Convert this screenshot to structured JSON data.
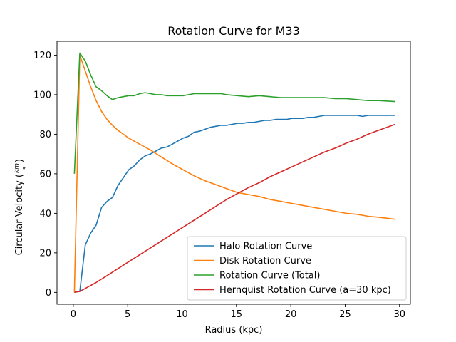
{
  "chart_data": {
    "type": "line",
    "title": "Rotation Curve for M33",
    "xlabel": "Radius (kpc)",
    "ylabel_prefix": "Circular Velocity (",
    "ylabel_num": "km",
    "ylabel_den": "s",
    "ylabel_suffix": ")",
    "xlim": [
      -1.5,
      31
    ],
    "ylim": [
      -6,
      127
    ],
    "xticks": [
      0,
      5,
      10,
      15,
      20,
      25,
      30
    ],
    "yticks": [
      0,
      20,
      40,
      60,
      80,
      100,
      120
    ],
    "grid": false,
    "legend": "lower-right",
    "series": [
      {
        "name": "Halo Rotation Curve",
        "color": "#1f77b4",
        "x": [
          0.1,
          0.6,
          1.1,
          1.6,
          2.1,
          2.6,
          3.1,
          3.6,
          4.1,
          4.6,
          5.1,
          5.6,
          6.1,
          6.6,
          7.1,
          7.6,
          8.1,
          8.6,
          9.1,
          9.6,
          10.1,
          10.6,
          11.1,
          11.6,
          12.1,
          12.6,
          13.1,
          13.6,
          14.1,
          14.6,
          15.1,
          15.6,
          16.1,
          16.6,
          17.1,
          17.6,
          18.1,
          18.6,
          19.1,
          19.6,
          20.1,
          20.6,
          21.1,
          21.6,
          22.1,
          22.6,
          23.1,
          23.6,
          24.1,
          24.6,
          25.1,
          25.6,
          26.1,
          26.6,
          27.1,
          27.6,
          28.1,
          28.6,
          29.1,
          29.6
        ],
        "values": [
          0.5,
          0.5,
          24,
          30,
          34,
          43,
          46,
          48,
          54,
          58,
          62,
          64,
          67,
          69,
          70,
          71.5,
          73,
          73.5,
          75,
          76.5,
          78,
          79,
          81,
          81.5,
          82.5,
          83.5,
          84,
          84.5,
          84.5,
          85,
          85.5,
          85.5,
          86,
          86,
          86.5,
          87,
          87,
          87.5,
          87.5,
          87.5,
          88,
          88,
          88,
          88.5,
          88.5,
          89,
          89.5,
          89.5,
          89.5,
          89.5,
          89.5,
          89.5,
          89.5,
          89,
          89.5,
          89.5,
          89.5,
          89.5,
          89.5,
          89.5
        ]
      },
      {
        "name": "Disk Rotation Curve",
        "color": "#ff7f0e",
        "x": [
          0.1,
          0.6,
          1.1,
          1.6,
          2.1,
          2.6,
          3.1,
          3.6,
          4.1,
          4.6,
          5.1,
          6.1,
          7.1,
          8.1,
          9.1,
          10.1,
          11.1,
          12.1,
          13.1,
          14.1,
          15.1,
          16.1,
          17.1,
          18.1,
          19.1,
          20.1,
          21.1,
          22.1,
          23.1,
          24.1,
          25.1,
          26.1,
          27.1,
          28.1,
          29.6
        ],
        "values": [
          0,
          120,
          112,
          104,
          97,
          91.5,
          87.5,
          84.5,
          82,
          80,
          78,
          75,
          72,
          68.5,
          65,
          62,
          59,
          56.5,
          54.5,
          52.5,
          50.5,
          49.5,
          48.5,
          47,
          46,
          45,
          44,
          43,
          42,
          41,
          40,
          39.5,
          38.5,
          38,
          37
        ]
      },
      {
        "name": "Rotation Curve (Total)",
        "color": "#2ca02c",
        "x": [
          0.1,
          0.6,
          1.1,
          1.6,
          2.1,
          2.6,
          3.1,
          3.6,
          4.1,
          4.6,
          5.1,
          5.6,
          6.1,
          6.6,
          7.1,
          7.6,
          8.1,
          8.6,
          9.1,
          9.6,
          10.1,
          10.6,
          11.1,
          11.6,
          12.1,
          12.6,
          13.1,
          13.6,
          14.1,
          15.1,
          16.1,
          17.1,
          18.1,
          19.1,
          20.1,
          21.1,
          22.1,
          23.1,
          24.1,
          25.1,
          26.1,
          27.1,
          28.1,
          29.6
        ],
        "values": [
          60,
          121,
          117,
          110,
          104,
          102,
          99.5,
          97.5,
          98.5,
          99,
          99.5,
          99.5,
          100.5,
          101,
          100.5,
          100,
          100,
          99.5,
          99.5,
          99.5,
          99.5,
          100,
          100.5,
          100.5,
          100.5,
          100.5,
          100.5,
          100.5,
          100,
          99.5,
          99,
          99.5,
          99,
          98.5,
          98.5,
          98.5,
          98.5,
          98.5,
          98,
          98,
          97.5,
          97,
          97,
          96.5
        ]
      },
      {
        "name": "Hernquist Rotation Curve (a=30 kpc)",
        "color": "#d62728",
        "x": [
          0.1,
          0.6,
          1.1,
          2.1,
          3.1,
          4.1,
          5.1,
          6.1,
          7.1,
          8.1,
          9.1,
          10.1,
          11.1,
          12.1,
          13.1,
          14.1,
          15.1,
          16.1,
          17.1,
          18.1,
          19.1,
          20.1,
          21.1,
          22.1,
          23.1,
          24.1,
          25.1,
          26.1,
          27.1,
          28.1,
          29.6
        ],
        "values": [
          0,
          0.5,
          2,
          5,
          8.5,
          12,
          15.5,
          19,
          22.5,
          26,
          29.5,
          33,
          36.5,
          40,
          43.5,
          47,
          50,
          53,
          55.5,
          58.5,
          61,
          63.5,
          66,
          68.5,
          71,
          73,
          75.5,
          77.5,
          80,
          82,
          85
        ]
      }
    ]
  }
}
